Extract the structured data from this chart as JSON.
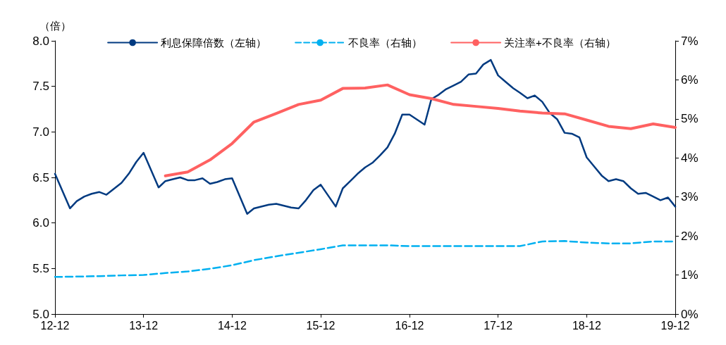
{
  "chart_data": {
    "type": "line",
    "ylabel": "（倍）",
    "legend": "top",
    "grid": false,
    "marker": "none",
    "xlim": [
      "2012-12",
      "2019-12"
    ],
    "xticks": [
      {
        "value": "2012-12",
        "label": "12-12"
      },
      {
        "value": "2013-12",
        "label": "13-12"
      },
      {
        "value": "2014-12",
        "label": "14-12"
      },
      {
        "value": "2015-12",
        "label": "15-12"
      },
      {
        "value": "2016-12",
        "label": "16-12"
      },
      {
        "value": "2017-12",
        "label": "17-12"
      },
      {
        "value": "2018-12",
        "label": "18-12"
      },
      {
        "value": "2019-12",
        "label": "19-12"
      }
    ],
    "ylim": [
      5,
      8
    ],
    "yticks": [
      {
        "value": 5,
        "label": "5.0"
      },
      {
        "value": 5.5,
        "label": "5.5"
      },
      {
        "value": 6,
        "label": "6.0"
      },
      {
        "value": 6.5,
        "label": "6.5"
      },
      {
        "value": 7,
        "label": "7.0"
      },
      {
        "value": 7.5,
        "label": "7.5"
      },
      {
        "value": 8,
        "label": "8.0"
      }
    ],
    "y2lim": [
      0,
      7
    ],
    "y2ticks": [
      {
        "value": 0,
        "label": "0%"
      },
      {
        "value": 1,
        "label": "1%"
      },
      {
        "value": 2,
        "label": "2%"
      },
      {
        "value": 3,
        "label": "3%"
      },
      {
        "value": 4,
        "label": "4%"
      },
      {
        "value": 5,
        "label": "5%"
      },
      {
        "value": 6,
        "label": "6%"
      },
      {
        "value": 7,
        "label": "7%"
      }
    ],
    "series": [
      {
        "name": "利息保障倍数（左轴）",
        "color": "#003a80",
        "line_style": "solid",
        "axis": "y",
        "x": [
          "2012-12",
          "2013-02",
          "2013-03",
          "2013-04",
          "2013-05",
          "2013-06",
          "2013-07",
          "2013-09",
          "2013-10",
          "2013-11",
          "2013-12",
          "2014-02",
          "2014-03",
          "2014-04",
          "2014-05",
          "2014-06",
          "2014-07",
          "2014-08",
          "2014-09",
          "2014-10",
          "2014-11",
          "2014-12",
          "2015-02",
          "2015-03",
          "2015-05",
          "2015-06",
          "2015-08",
          "2015-09",
          "2015-10",
          "2015-11",
          "2015-12",
          "2016-02",
          "2016-03",
          "2016-04",
          "2016-05",
          "2016-06",
          "2016-07",
          "2016-08",
          "2016-09",
          "2016-10",
          "2016-11",
          "2016-12",
          "2017-02",
          "2017-03",
          "2017-04",
          "2017-05",
          "2017-06",
          "2017-07",
          "2017-08",
          "2017-09",
          "2017-10",
          "2017-11",
          "2017-12",
          "2018-01",
          "2018-02",
          "2018-03",
          "2018-04",
          "2018-05",
          "2018-06",
          "2018-07",
          "2018-08",
          "2018-09",
          "2018-10",
          "2018-11",
          "2018-12",
          "2019-01",
          "2019-02",
          "2019-03",
          "2019-04",
          "2019-05",
          "2019-06",
          "2019-07",
          "2019-08",
          "2019-09",
          "2019-10",
          "2019-11",
          "2019-12"
        ],
        "values": [
          6.54,
          6.16,
          6.24,
          6.29,
          6.32,
          6.34,
          6.31,
          6.44,
          6.54,
          6.67,
          6.77,
          6.39,
          6.46,
          6.48,
          6.5,
          6.47,
          6.47,
          6.49,
          6.43,
          6.45,
          6.48,
          6.49,
          6.1,
          6.16,
          6.2,
          6.21,
          6.17,
          6.16,
          6.25,
          6.36,
          6.42,
          6.18,
          6.38,
          6.46,
          6.54,
          6.61,
          6.66,
          6.74,
          6.83,
          6.98,
          7.19,
          7.19,
          7.08,
          7.36,
          7.41,
          7.47,
          7.51,
          7.55,
          7.63,
          7.64,
          7.74,
          7.79,
          7.62,
          7.55,
          7.48,
          7.43,
          7.37,
          7.4,
          7.33,
          7.21,
          7.14,
          6.99,
          6.98,
          6.94,
          6.72,
          6.62,
          6.52,
          6.46,
          6.48,
          6.46,
          6.38,
          6.32,
          6.33,
          6.29,
          6.25,
          6.28,
          6.18
        ]
      },
      {
        "name": "不良率（右轴）",
        "color": "#00b0f0",
        "line_style": "dashed",
        "axis": "y2",
        "x": [
          "2012-12",
          "2013-03",
          "2013-06",
          "2013-09",
          "2013-12",
          "2014-03",
          "2014-06",
          "2014-09",
          "2014-12",
          "2015-03",
          "2015-06",
          "2015-09",
          "2015-12",
          "2016-03",
          "2016-06",
          "2016-09",
          "2016-12",
          "2017-03",
          "2017-06",
          "2017-09",
          "2017-12",
          "2018-03",
          "2018-06",
          "2018-09",
          "2018-12",
          "2019-03",
          "2019-06",
          "2019-09",
          "2019-12"
        ],
        "values": [
          0.95,
          0.96,
          0.97,
          0.99,
          1.0,
          1.05,
          1.09,
          1.16,
          1.25,
          1.38,
          1.48,
          1.57,
          1.66,
          1.76,
          1.76,
          1.76,
          1.74,
          1.74,
          1.74,
          1.74,
          1.74,
          1.74,
          1.86,
          1.87,
          1.83,
          1.81,
          1.81,
          1.86,
          1.86
        ]
      },
      {
        "name": "关注率+不良率（右轴）",
        "color": "#ff6161",
        "line_style": "solid",
        "axis": "y2",
        "x": [
          "2014-03",
          "2014-06",
          "2014-09",
          "2014-12",
          "2015-03",
          "2015-06",
          "2015-09",
          "2015-12",
          "2016-03",
          "2016-06",
          "2016-09",
          "2016-12",
          "2017-03",
          "2017-06",
          "2017-09",
          "2017-12",
          "2018-03",
          "2018-06",
          "2018-09",
          "2018-12",
          "2019-03",
          "2019-06",
          "2019-09",
          "2019-12"
        ],
        "values": [
          3.54,
          3.64,
          3.95,
          4.37,
          4.92,
          5.14,
          5.37,
          5.48,
          5.78,
          5.79,
          5.87,
          5.62,
          5.52,
          5.37,
          5.32,
          5.27,
          5.2,
          5.15,
          5.13,
          4.97,
          4.81,
          4.75,
          4.87,
          4.78
        ]
      }
    ]
  }
}
